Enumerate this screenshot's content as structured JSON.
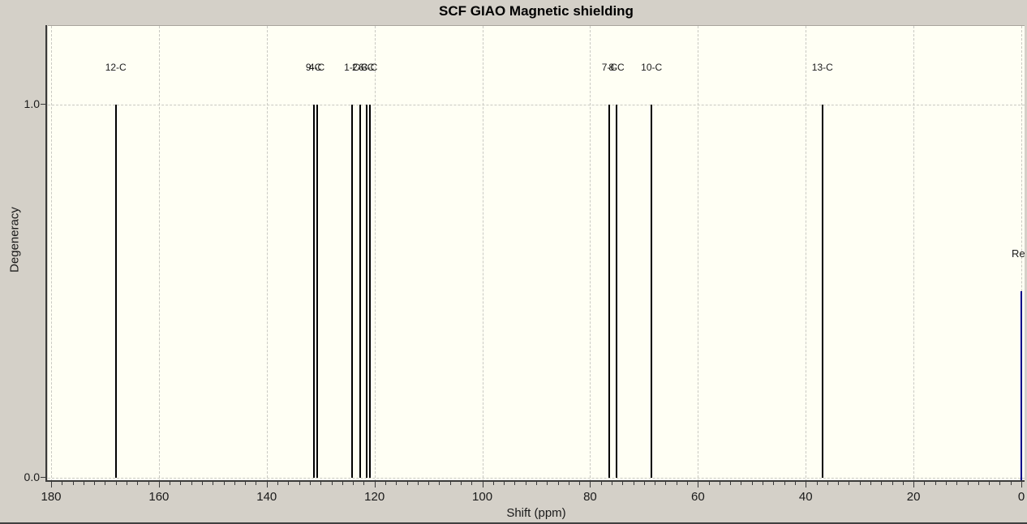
{
  "window": {
    "background_color": "#d4d0c8",
    "plot_background_color": "#fffff4"
  },
  "chart_data": {
    "type": "stem",
    "title": "SCF GIAO Magnetic shielding",
    "xlabel": "Shift (ppm)",
    "ylabel": "Degeneracy",
    "x_axis": {
      "min": 0,
      "max": 180,
      "reversed": true,
      "major_tick_step": 20,
      "minor_tick_step": 2,
      "tick_labels": [
        "180",
        "160",
        "140",
        "120",
        "100",
        "80",
        "60",
        "40",
        "20",
        "0"
      ]
    },
    "y_axis": {
      "min": 0.0,
      "plot_top_value": 1.21,
      "ticks": [
        {
          "value": 0.0,
          "label": "0.0"
        },
        {
          "value": 1.0,
          "label": "1.0"
        }
      ]
    },
    "grid": {
      "vertical_at_major_ticks": true,
      "horizontal_at_y_ticks": true,
      "style": "dashed",
      "color": "#c9c9c2"
    },
    "peak_color": "#000000",
    "peaks": [
      {
        "label": "12-C",
        "shift_ppm": 168.0,
        "degeneracy": 1.0
      },
      {
        "label": "9-C",
        "shift_ppm": 131.3,
        "degeneracy": 1.0
      },
      {
        "label": "4-C",
        "shift_ppm": 130.7,
        "degeneracy": 1.0
      },
      {
        "label": "1-C",
        "shift_ppm": 124.2,
        "degeneracy": 1.0
      },
      {
        "label": "2-C",
        "shift_ppm": 122.7,
        "degeneracy": 1.0
      },
      {
        "label": "6-C",
        "shift_ppm": 121.5,
        "degeneracy": 1.0
      },
      {
        "label": "3-C",
        "shift_ppm": 120.9,
        "degeneracy": 1.0
      },
      {
        "label": "7-C",
        "shift_ppm": 76.4,
        "degeneracy": 1.0
      },
      {
        "label": "8-C",
        "shift_ppm": 75.1,
        "degeneracy": 1.0
      },
      {
        "label": "10-C",
        "shift_ppm": 68.6,
        "degeneracy": 1.0
      },
      {
        "label": "13-C",
        "shift_ppm": 36.9,
        "degeneracy": 1.0
      }
    ],
    "reference": {
      "label": "Re",
      "label_note": "clipped at right plot edge",
      "shift_ppm": 0.0,
      "height": 0.5,
      "color": "#00008b"
    },
    "axis_color": "#3a3a3a"
  }
}
